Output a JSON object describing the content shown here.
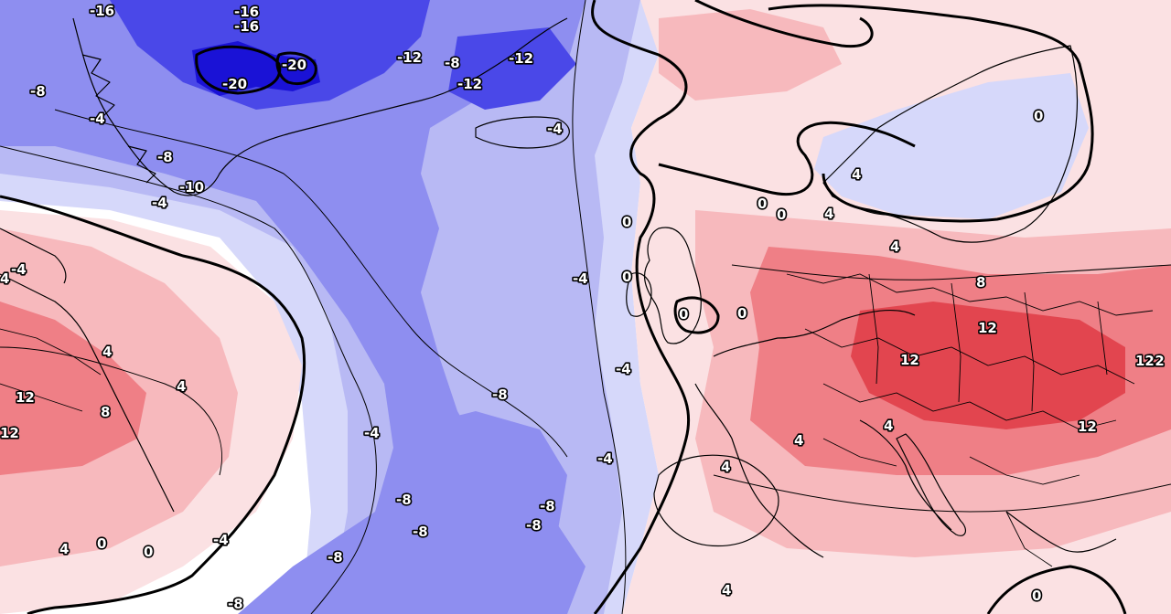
{
  "map": {
    "colors": {
      "deep_cold": "#1a12d6",
      "very_cold": "#4a48e8",
      "cold": "#8e8ef0",
      "cool": "#b8b9f4",
      "chilly": "#d6d8fa",
      "neutral": "#ffffff",
      "mild": "#fbe1e3",
      "warm": "#f7b9bd",
      "hot": "#ef7f86",
      "very_hot": "#e2454f"
    },
    "labels": [
      {
        "id": "l1",
        "text": "-16"
      },
      {
        "id": "l2",
        "text": "-16"
      },
      {
        "id": "l3",
        "text": "-16"
      },
      {
        "id": "l4",
        "text": "-20"
      },
      {
        "id": "l5",
        "text": "-20"
      },
      {
        "id": "l6",
        "text": "-12"
      },
      {
        "id": "l7",
        "text": "-8"
      },
      {
        "id": "l8",
        "text": "-12"
      },
      {
        "id": "l9",
        "text": "-12"
      },
      {
        "id": "l10",
        "text": "-8"
      },
      {
        "id": "l11",
        "text": "-4"
      },
      {
        "id": "l12",
        "text": "-8"
      },
      {
        "id": "l13",
        "text": "-10"
      },
      {
        "id": "l14",
        "text": "-4"
      },
      {
        "id": "l15",
        "text": "-4"
      },
      {
        "id": "l16",
        "text": "0"
      },
      {
        "id": "l17",
        "text": "0"
      },
      {
        "id": "l18",
        "text": "-4"
      },
      {
        "id": "l19",
        "text": "0"
      },
      {
        "id": "l20",
        "text": "-4"
      },
      {
        "id": "l21",
        "text": "-8"
      },
      {
        "id": "l22",
        "text": "-4"
      },
      {
        "id": "l23",
        "text": "-4"
      },
      {
        "id": "l24",
        "text": "-8"
      },
      {
        "id": "l25",
        "text": "-8"
      },
      {
        "id": "l26",
        "text": "-8"
      },
      {
        "id": "l27",
        "text": "-8"
      },
      {
        "id": "l28",
        "text": "-8"
      },
      {
        "id": "l29",
        "text": "-4"
      },
      {
        "id": "l30",
        "text": "-8"
      },
      {
        "id": "l31",
        "text": "0"
      },
      {
        "id": "l32",
        "text": "0"
      },
      {
        "id": "l33",
        "text": "0"
      },
      {
        "id": "l34",
        "text": "4"
      },
      {
        "id": "l35",
        "text": "0"
      },
      {
        "id": "l36",
        "text": "4"
      },
      {
        "id": "l37",
        "text": "8"
      },
      {
        "id": "l38",
        "text": "12"
      },
      {
        "id": "l39",
        "text": "12"
      },
      {
        "id": "l40",
        "text": "12"
      },
      {
        "id": "l41",
        "text": "12"
      },
      {
        "id": "l42",
        "text": "12"
      },
      {
        "id": "l43",
        "text": "4"
      },
      {
        "id": "l44",
        "text": "4"
      },
      {
        "id": "l45",
        "text": "4"
      },
      {
        "id": "l46",
        "text": "4"
      },
      {
        "id": "l47",
        "text": "0"
      },
      {
        "id": "l48",
        "text": "4"
      },
      {
        "id": "l49",
        "text": "4"
      },
      {
        "id": "l50",
        "text": "4"
      },
      {
        "id": "l51",
        "text": "12"
      },
      {
        "id": "l52",
        "text": "8"
      },
      {
        "id": "l53",
        "text": "12"
      },
      {
        "id": "l54",
        "text": "4"
      },
      {
        "id": "l55",
        "text": "4"
      },
      {
        "id": "l56",
        "text": "0"
      },
      {
        "id": "l57",
        "text": "0"
      },
      {
        "id": "l58",
        "text": "-4"
      }
    ]
  }
}
